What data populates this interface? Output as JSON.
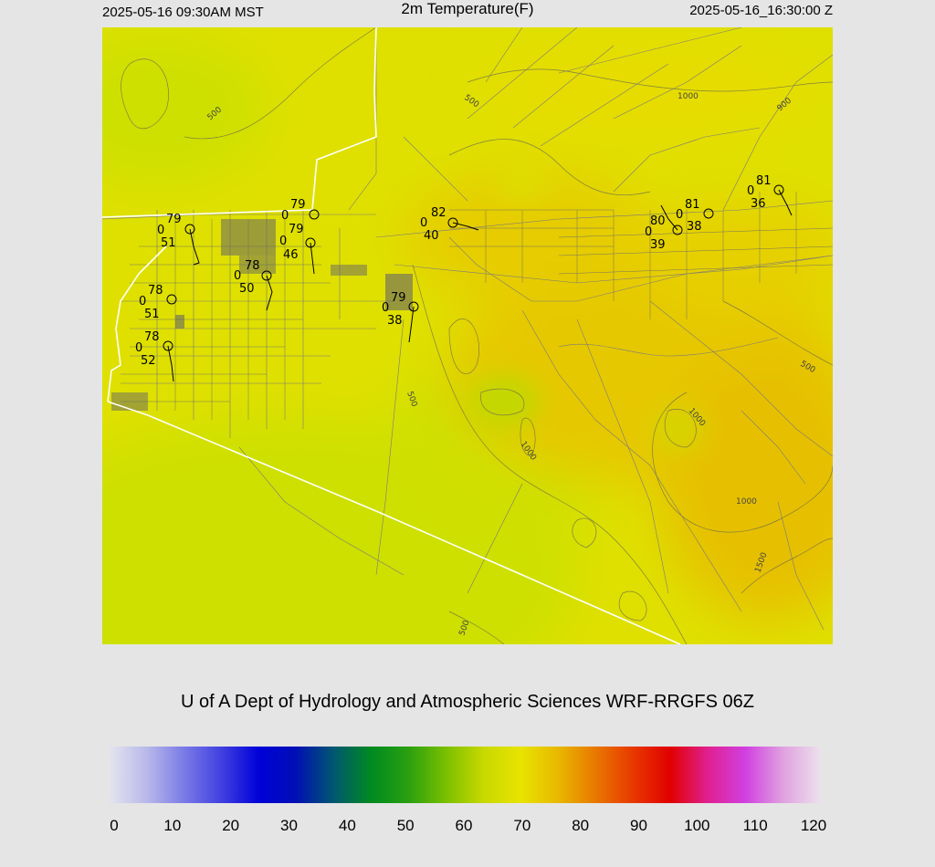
{
  "header": {
    "local_time": "2025-05-16 09:30AM MST",
    "title": "2m Temperature(F)",
    "utc_time": "2025-05-16_16:30:00 Z"
  },
  "credit": "U of A Dept of Hydrology and Atmospheric Sciences WRF-RRGFS 06Z",
  "colorbar": {
    "ticks": [
      "0",
      "10",
      "20",
      "30",
      "40",
      "50",
      "60",
      "70",
      "80",
      "90",
      "100",
      "110",
      "120"
    ],
    "colors": [
      "#e4e4ee",
      "#b8b8ea",
      "#7a7ae6",
      "#4040e0",
      "#0000d8",
      "#0010b4",
      "#005870",
      "#008a20",
      "#2aa010",
      "#7ac000",
      "#c8d800",
      "#e8e400",
      "#e8b800",
      "#e87800",
      "#e83800",
      "#e00000",
      "#e02090",
      "#d040e0",
      "#e0a0e0",
      "#ece0ec"
    ]
  },
  "stations": [
    {
      "temp": "79",
      "wind": "0",
      "dew": "51"
    },
    {
      "temp": "78",
      "wind": "0",
      "dew": "51"
    },
    {
      "temp": "78",
      "wind": "0",
      "dew": "52"
    },
    {
      "temp": "78",
      "wind": "0",
      "dew": "50"
    },
    {
      "temp": "79",
      "wind": "0",
      "dew": "46"
    },
    {
      "temp": "79",
      "wind": "0",
      "dew": "38"
    },
    {
      "temp": "82",
      "wind": "0",
      "dew": "40"
    },
    {
      "temp": "80",
      "wind": "0",
      "dew": "39"
    },
    {
      "temp": "81",
      "wind": "0",
      "dew": "38"
    },
    {
      "temp": "81",
      "wind": "0",
      "dew": "36"
    }
  ],
  "contour_labels": [
    "500",
    "500",
    "1000",
    "900",
    "500",
    "1000",
    "500",
    "1000",
    "1000",
    "1500",
    "500"
  ]
}
